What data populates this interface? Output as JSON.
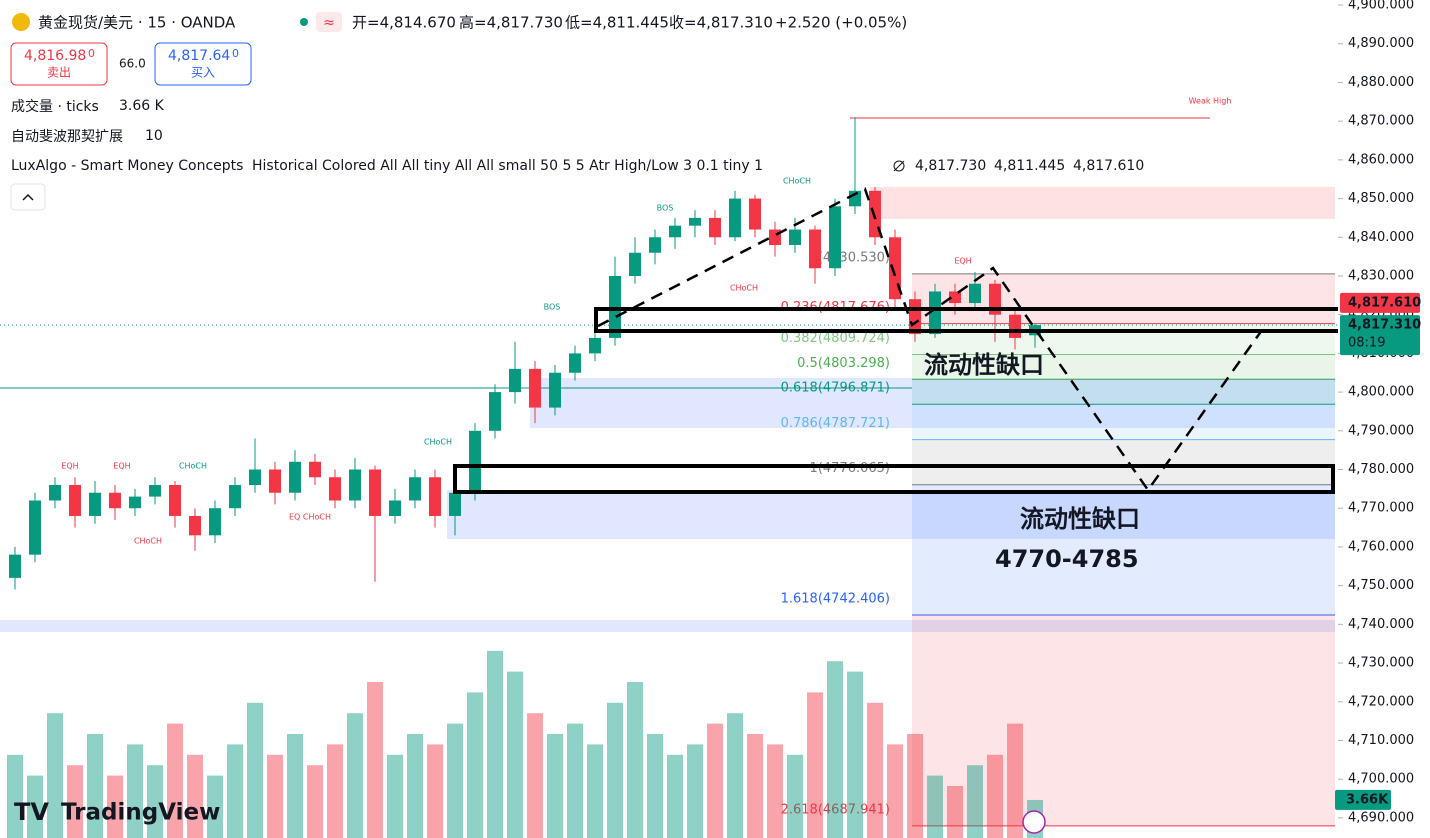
{
  "header": {
    "symbol": "黄金现货/美元 · 15 · OANDA",
    "open": "开=4,814.670",
    "high": "高=4,817.730",
    "low": "低=4,811.445",
    "close": "收=4,817.310",
    "change": "+2.520 (+0.05%)",
    "sell": {
      "price": "4,816.98",
      "suffix": "0",
      "label": "卖出"
    },
    "spread": "66.0",
    "buy": {
      "price": "4,817.64",
      "suffix": "0",
      "label": "买入"
    }
  },
  "indicators": [
    {
      "name": "成交量 · ticks",
      "value": "3.66 K"
    },
    {
      "name": "自动斐波那契扩展",
      "value": "10"
    },
    {
      "name": "LuxAlgo - Smart Money Concepts",
      "value": "Historical Colored All All tiny All All small 50 5 5 Atr High/Low 3 0.1 tiny 1"
    }
  ],
  "indicator_values": [
    "4,817.730",
    "4,811.445",
    "4,817.610"
  ],
  "brand": "TradingView",
  "annotations": [
    "流动性缺口",
    "流动性缺口",
    "4770-4785"
  ],
  "smc_labels": [
    "EQH",
    "EQH",
    "CHoCH",
    "CHoCH",
    "EQ CHoCH",
    "CHoCH",
    "BOS",
    "BOS",
    "CHoCH",
    "CHoCH",
    "EQH",
    "Weak High"
  ],
  "chart_data": {
    "type": "candlestick",
    "up_color": "#089981",
    "down_color": "#f23645",
    "ylim": [
      4684.8,
      4901.3
    ],
    "yticks": [
      {
        "value": 4690,
        "label": "4,690.000"
      },
      {
        "value": 4700,
        "label": "4,700.000"
      },
      {
        "value": 4710,
        "label": "4,710.000"
      },
      {
        "value": 4720,
        "label": "4,720.000"
      },
      {
        "value": 4730,
        "label": "4,730.000"
      },
      {
        "value": 4740,
        "label": "4,740.000"
      },
      {
        "value": 4750,
        "label": "4,750.000"
      },
      {
        "value": 4760,
        "label": "4,760.000"
      },
      {
        "value": 4770,
        "label": "4,770.000"
      },
      {
        "value": 4780,
        "label": "4,780.000"
      },
      {
        "value": 4790,
        "label": "4,790.000"
      },
      {
        "value": 4800,
        "label": "4,800.000"
      },
      {
        "value": 4810,
        "label": "4,810.000"
      },
      {
        "value": 4820,
        "label": "4,820.000"
      },
      {
        "value": 4830,
        "label": "4,830.000"
      },
      {
        "value": 4840,
        "label": "4,840.000"
      },
      {
        "value": 4850,
        "label": "4,850.000"
      },
      {
        "value": 4860,
        "label": "4,860.000"
      },
      {
        "value": 4870,
        "label": "4,870.000"
      },
      {
        "value": 4880,
        "label": "4,880.000"
      },
      {
        "value": 4890,
        "label": "4,890.000"
      },
      {
        "value": 4900,
        "label": "4,900.000"
      }
    ],
    "open": [
      4752,
      4758,
      4772,
      4776,
      4768,
      4774,
      4770,
      4773,
      4776,
      4768,
      4763,
      4770,
      4776,
      4780,
      4774,
      4782,
      4778,
      4772,
      4780,
      4768,
      4772,
      4778,
      4768,
      4774,
      4790,
      4800,
      4806,
      4796,
      4805,
      4810,
      4814,
      4830,
      4836,
      4840,
      4843,
      4845,
      4840,
      4850,
      4842,
      4838,
      4842,
      4832,
      4848,
      4852,
      4840,
      4824,
      4815,
      4826,
      4823,
      4828,
      4820,
      4814.67
    ],
    "high": [
      4760,
      4774,
      4778,
      4778,
      4777,
      4776,
      4775,
      4778,
      4777,
      4770,
      4772,
      4778,
      4788,
      4782,
      4785,
      4784,
      4780,
      4783,
      4781,
      4775,
      4780,
      4780,
      4776,
      4792,
      4802,
      4813,
      4808,
      4807,
      4812,
      4818,
      4835,
      4840,
      4842,
      4845,
      4847,
      4847,
      4852,
      4851,
      4844,
      4845,
      4843,
      4850,
      4871,
      4853,
      4842,
      4826,
      4828,
      4828,
      4831,
      4829,
      4821,
      4817.73
    ],
    "low": [
      4749,
      4756,
      4770,
      4765,
      4766,
      4767,
      4768,
      4771,
      4765,
      4759,
      4761,
      4768,
      4774,
      4771,
      4772,
      4776,
      4770,
      4770,
      4751,
      4766,
      4770,
      4765,
      4763,
      4772,
      4788,
      4797,
      4792,
      4794,
      4803,
      4808,
      4812,
      4828,
      4833,
      4837,
      4840,
      4838,
      4839,
      4840,
      4835,
      4836,
      4828,
      4830,
      4846,
      4838,
      4822,
      4813,
      4814,
      4820,
      4821,
      4813,
      4811,
      4811.445
    ],
    "close": [
      4758,
      4772,
      4776,
      4768,
      4774,
      4770,
      4773,
      4776,
      4768,
      4763,
      4770,
      4776,
      4780,
      4774,
      4782,
      4778,
      4772,
      4780,
      4768,
      4772,
      4778,
      4768,
      4774,
      4790,
      4800,
      4806,
      4796,
      4805,
      4810,
      4814,
      4830,
      4836,
      4840,
      4843,
      4845,
      4840,
      4850,
      4842,
      4838,
      4842,
      4832,
      4848,
      4852,
      4840,
      4824,
      4815,
      4826,
      4823,
      4828,
      4820,
      4814,
      4817.31
    ],
    "volume": [
      8,
      6,
      12,
      7,
      10,
      6,
      9,
      7,
      11,
      8,
      6,
      9,
      13,
      8,
      10,
      7,
      9,
      12,
      15,
      8,
      10,
      9,
      11,
      14,
      18,
      16,
      12,
      10,
      11,
      9,
      13,
      15,
      10,
      8,
      9,
      11,
      12,
      10,
      9,
      8,
      14,
      17,
      16,
      13,
      9,
      10,
      6,
      5,
      7,
      8,
      11,
      3.66
    ],
    "volume_label": "3.66K",
    "fib_levels": [
      {
        "label": "0(4830.530)",
        "value": 4830.53,
        "color": "#787b86"
      },
      {
        "label": "0.236(4817.676)",
        "value": 4817.676,
        "color": "#f23645"
      },
      {
        "label": "0.382(4809.724)",
        "value": 4809.724,
        "color": "#81c784"
      },
      {
        "label": "0.5(4803.298)",
        "value": 4803.298,
        "color": "#4caf50"
      },
      {
        "label": "0.618(4796.871)",
        "value": 4796.871,
        "color": "#089981"
      },
      {
        "label": "0.786(4787.721)",
        "value": 4787.721,
        "color": "#64b5f6"
      },
      {
        "label": "1(4776.065)",
        "value": 4776.065,
        "color": "#787b86"
      },
      {
        "label": "1.618(4742.406)",
        "value": 4742.406,
        "color": "#2962ff"
      },
      {
        "label": "2.618(4687.941)",
        "value": 4687.941,
        "color": "#f23645"
      }
    ],
    "price_tags": [
      {
        "label": "4,817.610",
        "value": 4817.61,
        "color": "#f23645"
      },
      {
        "label": "4,817.310",
        "value": 4817.31,
        "color": "#089981"
      }
    ],
    "countdown": "08:19"
  }
}
